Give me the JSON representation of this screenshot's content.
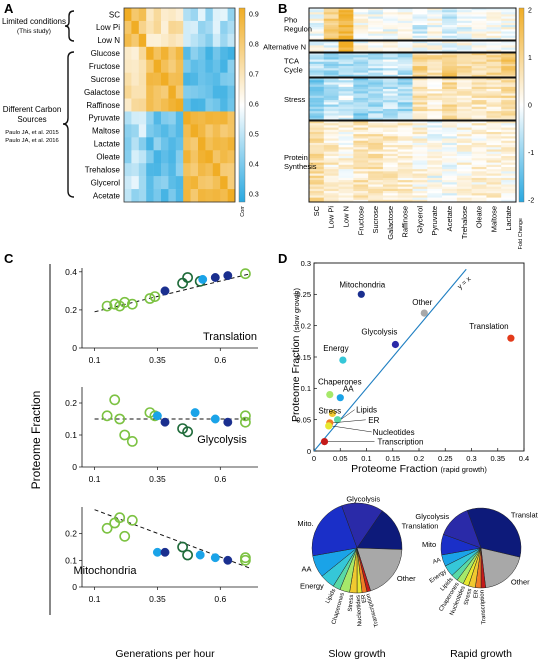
{
  "colors": {
    "lime": "#7cc242",
    "dark_green": "#1f6b3a",
    "navy": "#1a2f8f",
    "sky": "#1aa3e8",
    "heat_low": "#29a8e0",
    "heat_mid": "#ffffff",
    "heat_high": "#f0ad25"
  },
  "panels": {
    "A": {
      "letter": "A",
      "rows": [
        "SC",
        "Low Pi",
        "Low N",
        "Glucose",
        "Fructose",
        "Sucrose",
        "Galactose",
        "Raffinose",
        "Pyruvate",
        "Maltose",
        "Lactate",
        "Oleate",
        "Trehalose",
        "Glycerol",
        "Acetate"
      ],
      "group_limited": [
        "Limited conditions",
        "(This study)"
      ],
      "group_carbon": [
        "Different Carbon",
        "Sources"
      ],
      "refs": [
        "Paulo JA, et al. 2015",
        "Paulo JA, et al. 2016"
      ],
      "colorbar": {
        "ticks": [
          "0.9",
          "0.8",
          "0.7",
          "0.6",
          "0.5",
          "0.4",
          "0.3"
        ],
        "label": "Corr"
      }
    },
    "B": {
      "letter": "B",
      "groups": [
        "Pho\nRegulon",
        "Alternative N",
        "TCA\nCycle",
        "Stress",
        "Protein\nSynthesis"
      ],
      "cols": [
        "SC",
        "Low Pi",
        "Low N",
        "Fructose",
        "Sucrose",
        "Galactose",
        "Raffinose",
        "Glycerol",
        "Pyruvate",
        "Acetate",
        "Trehalose",
        "Oleate",
        "Maltose",
        "Lactate"
      ],
      "colorbar": {
        "ticks": [
          "2",
          "1",
          "0",
          "-1",
          "-2"
        ],
        "label": "Fold Change"
      }
    },
    "C": {
      "letter": "C",
      "ylabel": "Proteome Fraction",
      "xlabel": "Generations per hour",
      "xticks": [
        "0.1",
        "0.35",
        "0.6"
      ],
      "subplots": [
        {
          "title": "Translation",
          "yticks": [
            "0.4",
            "0.2",
            "0"
          ],
          "ylim": [
            0,
            0.42
          ],
          "points": [
            {
              "x": 0.15,
              "y": 0.22,
              "c": "lime"
            },
            {
              "x": 0.18,
              "y": 0.23,
              "c": "lime"
            },
            {
              "x": 0.2,
              "y": 0.22,
              "c": "lime"
            },
            {
              "x": 0.22,
              "y": 0.24,
              "c": "lime"
            },
            {
              "x": 0.25,
              "y": 0.23,
              "c": "lime"
            },
            {
              "x": 0.32,
              "y": 0.26,
              "c": "lime"
            },
            {
              "x": 0.34,
              "y": 0.27,
              "c": "lime"
            },
            {
              "x": 0.38,
              "y": 0.3,
              "c": "navy"
            },
            {
              "x": 0.45,
              "y": 0.34,
              "c": "dark_green"
            },
            {
              "x": 0.47,
              "y": 0.37,
              "c": "dark_green"
            },
            {
              "x": 0.52,
              "y": 0.35,
              "c": "dark_green"
            },
            {
              "x": 0.53,
              "y": 0.36,
              "c": "sky"
            },
            {
              "x": 0.58,
              "y": 0.37,
              "c": "navy"
            },
            {
              "x": 0.63,
              "y": 0.38,
              "c": "navy"
            },
            {
              "x": 0.7,
              "y": 0.39,
              "c": "lime"
            }
          ],
          "fit": [
            [
              0.1,
              0.19
            ],
            [
              0.72,
              0.39
            ]
          ]
        },
        {
          "title": "Glycolysis",
          "yticks": [
            "0.2",
            "0.1",
            "0"
          ],
          "ylim": [
            0,
            0.25
          ],
          "points": [
            {
              "x": 0.15,
              "y": 0.16,
              "c": "lime"
            },
            {
              "x": 0.18,
              "y": 0.21,
              "c": "lime"
            },
            {
              "x": 0.2,
              "y": 0.15,
              "c": "lime"
            },
            {
              "x": 0.22,
              "y": 0.1,
              "c": "lime"
            },
            {
              "x": 0.25,
              "y": 0.08,
              "c": "lime"
            },
            {
              "x": 0.32,
              "y": 0.17,
              "c": "lime"
            },
            {
              "x": 0.34,
              "y": 0.16,
              "c": "lime"
            },
            {
              "x": 0.35,
              "y": 0.16,
              "c": "sky"
            },
            {
              "x": 0.38,
              "y": 0.14,
              "c": "navy"
            },
            {
              "x": 0.45,
              "y": 0.12,
              "c": "dark_green"
            },
            {
              "x": 0.47,
              "y": 0.11,
              "c": "dark_green"
            },
            {
              "x": 0.5,
              "y": 0.17,
              "c": "sky"
            },
            {
              "x": 0.58,
              "y": 0.15,
              "c": "sky"
            },
            {
              "x": 0.63,
              "y": 0.14,
              "c": "navy"
            },
            {
              "x": 0.7,
              "y": 0.16,
              "c": "lime"
            },
            {
              "x": 0.7,
              "y": 0.14,
              "c": "lime"
            }
          ],
          "fit": [
            [
              0.1,
              0.15
            ],
            [
              0.72,
              0.15
            ]
          ]
        },
        {
          "title": "Mitochondria",
          "yticks": [
            "0.2",
            "0.1",
            "0"
          ],
          "ylim": [
            0,
            0.3
          ],
          "points": [
            {
              "x": 0.15,
              "y": 0.22,
              "c": "lime"
            },
            {
              "x": 0.18,
              "y": 0.24,
              "c": "lime"
            },
            {
              "x": 0.2,
              "y": 0.26,
              "c": "lime"
            },
            {
              "x": 0.22,
              "y": 0.19,
              "c": "lime"
            },
            {
              "x": 0.25,
              "y": 0.25,
              "c": "lime"
            },
            {
              "x": 0.35,
              "y": 0.13,
              "c": "sky"
            },
            {
              "x": 0.38,
              "y": 0.13,
              "c": "navy"
            },
            {
              "x": 0.45,
              "y": 0.15,
              "c": "dark_green"
            },
            {
              "x": 0.47,
              "y": 0.12,
              "c": "dark_green"
            },
            {
              "x": 0.52,
              "y": 0.12,
              "c": "sky"
            },
            {
              "x": 0.58,
              "y": 0.11,
              "c": "sky"
            },
            {
              "x": 0.63,
              "y": 0.1,
              "c": "navy"
            },
            {
              "x": 0.7,
              "y": 0.11,
              "c": "lime"
            },
            {
              "x": 0.7,
              "y": 0.1,
              "c": "lime"
            }
          ],
          "fit": [
            [
              0.1,
              0.29
            ],
            [
              0.72,
              0.07
            ]
          ]
        }
      ]
    },
    "D": {
      "letter": "D",
      "ylabel": "Proteome Fraction",
      "ylabel_note": "(slow growth)",
      "xlabel": "Proteome Fraction",
      "xlabel_note": "(rapid growth)",
      "xticks": [
        "0",
        "0.05",
        "0.1",
        "0.15",
        "0.2",
        "0.25",
        "0.3",
        "0.35",
        "0.4"
      ],
      "yticks": [
        "0",
        "0.05",
        "0.1",
        "0.15",
        "0.2",
        "0.25",
        "0.3"
      ],
      "diag_label": "y = x",
      "points": [
        {
          "name": "Mitochondria",
          "x": 0.09,
          "y": 0.25,
          "c": "#1a2f8f"
        },
        {
          "name": "Other",
          "x": 0.21,
          "y": 0.22,
          "c": "#a8a8a8"
        },
        {
          "name": "Glycolysis",
          "x": 0.155,
          "y": 0.17,
          "c": "#2a2aa8"
        },
        {
          "name": "Translation",
          "x": 0.375,
          "y": 0.18,
          "c": "#e33a1a"
        },
        {
          "name": "Energy",
          "x": 0.055,
          "y": 0.145,
          "c": "#35c7d8"
        },
        {
          "name": "Chaperones",
          "x": 0.03,
          "y": 0.09,
          "c": "#a6e86a"
        },
        {
          "name": "AA",
          "x": 0.05,
          "y": 0.085,
          "c": "#1aa3e8"
        },
        {
          "name": "Stress",
          "x": 0.035,
          "y": 0.06,
          "c": "#f0c930"
        },
        {
          "name": "Lipids",
          "x": 0.045,
          "y": 0.05,
          "c": "#59d9a6"
        },
        {
          "name": "ER",
          "x": 0.03,
          "y": 0.045,
          "c": "#f07d25"
        },
        {
          "name": "Nucleotides",
          "x": 0.028,
          "y": 0.04,
          "c": "#e8e830"
        },
        {
          "name": "Transcription",
          "x": 0.02,
          "y": 0.015,
          "c": "#c41a1a"
        }
      ],
      "pie_slow": {
        "title": "Slow growth",
        "slices": [
          {
            "name": "Glycolysis",
            "v": 17,
            "c": "#2a2aa8"
          },
          {
            "name": "Translation",
            "v": 18,
            "c": "#0d1a7a"
          },
          {
            "name": "Other",
            "v": 22,
            "c": "#a8a8a8"
          },
          {
            "name": "Transcription",
            "v": 1.5,
            "c": "#c41a1a"
          },
          {
            "name": "ER",
            "v": 2,
            "c": "#f07d25"
          },
          {
            "name": "Nucleotides",
            "v": 2,
            "c": "#e8e830"
          },
          {
            "name": "Stress",
            "v": 3,
            "c": "#f0c930"
          },
          {
            "name": "Chaperones",
            "v": 4,
            "c": "#a6e86a"
          },
          {
            "name": "Lipids",
            "v": 3,
            "c": "#59d9a6"
          },
          {
            "name": "Energy",
            "v": 6,
            "c": "#35c7d8"
          },
          {
            "name": "AA",
            "v": 9,
            "c": "#1aa3e8"
          },
          {
            "name": "Mito.",
            "v": 25,
            "c": "#1a2fc8"
          }
        ]
      },
      "pie_rapid": {
        "title": "Rapid growth",
        "slices": [
          {
            "name": "Translation",
            "v": 37,
            "c": "#0d1a7a"
          },
          {
            "name": "Other",
            "v": 21,
            "c": "#a8a8a8"
          },
          {
            "name": "Transcription",
            "v": 2,
            "c": "#c41a1a"
          },
          {
            "name": "ER",
            "v": 2.5,
            "c": "#f07d25"
          },
          {
            "name": "Stress",
            "v": 3,
            "c": "#f0c930"
          },
          {
            "name": "Nucleotides",
            "v": 2.5,
            "c": "#e8e830"
          },
          {
            "name": "Chaperones",
            "v": 3,
            "c": "#a6e86a"
          },
          {
            "name": "Lipids",
            "v": 3,
            "c": "#59d9a6"
          },
          {
            "name": "Energy",
            "v": 5,
            "c": "#35c7d8"
          },
          {
            "name": "AA",
            "v": 5,
            "c": "#1aa3e8"
          },
          {
            "name": "Mito",
            "v": 9,
            "c": "#1a2fc8"
          },
          {
            "name": "Glycolysis",
            "v": 15,
            "c": "#2a2aa8"
          }
        ]
      }
    }
  }
}
